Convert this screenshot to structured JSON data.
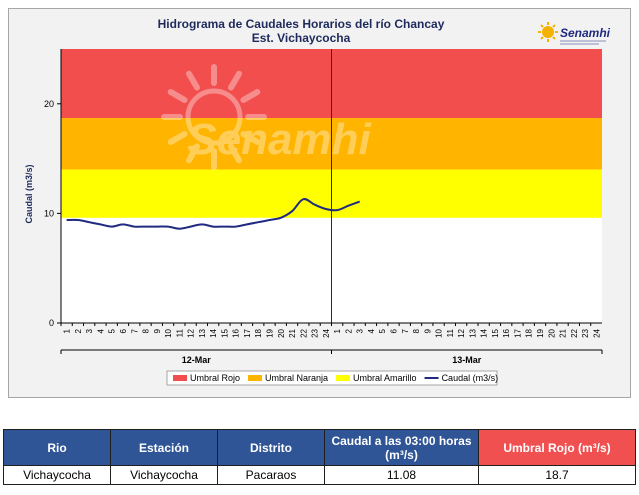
{
  "chart_data": {
    "type": "line",
    "title": "Hidrograma de Caudales Horarios del río Chancay",
    "subtitle": "Est. Vichaycocha",
    "ylabel": "Caudal  (m3/s)",
    "ylim": [
      0,
      25
    ],
    "yticks": [
      "0",
      "10",
      "20"
    ],
    "xticks": [
      "1",
      "2",
      "3",
      "4",
      "5",
      "6",
      "7",
      "8",
      "9",
      "10",
      "11",
      "12",
      "13",
      "14",
      "15",
      "16",
      "17",
      "18",
      "19",
      "20",
      "21",
      "22",
      "23",
      "24",
      "1",
      "2",
      "3",
      "4",
      "5",
      "6",
      "7",
      "8",
      "9",
      "10",
      "11",
      "12",
      "13",
      "14",
      "15",
      "16",
      "17",
      "18",
      "19",
      "20",
      "21",
      "22",
      "23",
      "24"
    ],
    "date_groups": [
      "12-Mar",
      "13-Mar"
    ],
    "thresholds": [
      {
        "name": "Umbral Rojo",
        "from": 18.7,
        "to": 25,
        "color": "#f24e4e"
      },
      {
        "name": "Umbral Naranja",
        "from": 14.0,
        "to": 18.7,
        "color": "#ffb400"
      },
      {
        "name": "Umbral Amarillo",
        "from": 9.6,
        "to": 14.0,
        "color": "#ffff00"
      }
    ],
    "series": [
      {
        "name": "Caudal (m3/s)",
        "color": "#1f2a80",
        "values": [
          9.4,
          9.4,
          9.2,
          9.0,
          8.8,
          9.0,
          8.8,
          8.8,
          8.8,
          8.8,
          8.6,
          8.8,
          9.0,
          8.8,
          8.8,
          8.8,
          9.0,
          9.2,
          9.4,
          9.6,
          10.2,
          11.3,
          10.8,
          10.4,
          10.3,
          10.7,
          11.08
        ]
      }
    ],
    "divider_at_hour": 24,
    "legend": [
      {
        "label": "Umbral Rojo",
        "color": "#f24e4e",
        "kind": "box"
      },
      {
        "label": "Umbral Naranja",
        "color": "#ffb400",
        "kind": "box"
      },
      {
        "label": "Umbral Amarillo",
        "color": "#ffff00",
        "kind": "box"
      },
      {
        "label": "Caudal (m3/s)",
        "color": "#1f2a80",
        "kind": "line"
      }
    ],
    "legend_position": "bottom",
    "grid": false
  },
  "brand": {
    "name": "Senamhi",
    "watermark": "Senamhi"
  },
  "table": {
    "headers": [
      "Rio",
      "Estación",
      "Distrito",
      "Caudal a las 03:00 horas (m³/s)",
      "Umbral Rojo (m³/s)"
    ],
    "row": [
      "Vichaycocha",
      "Vichaycocha",
      "Pacaraos",
      "11.08",
      "18.7"
    ]
  }
}
